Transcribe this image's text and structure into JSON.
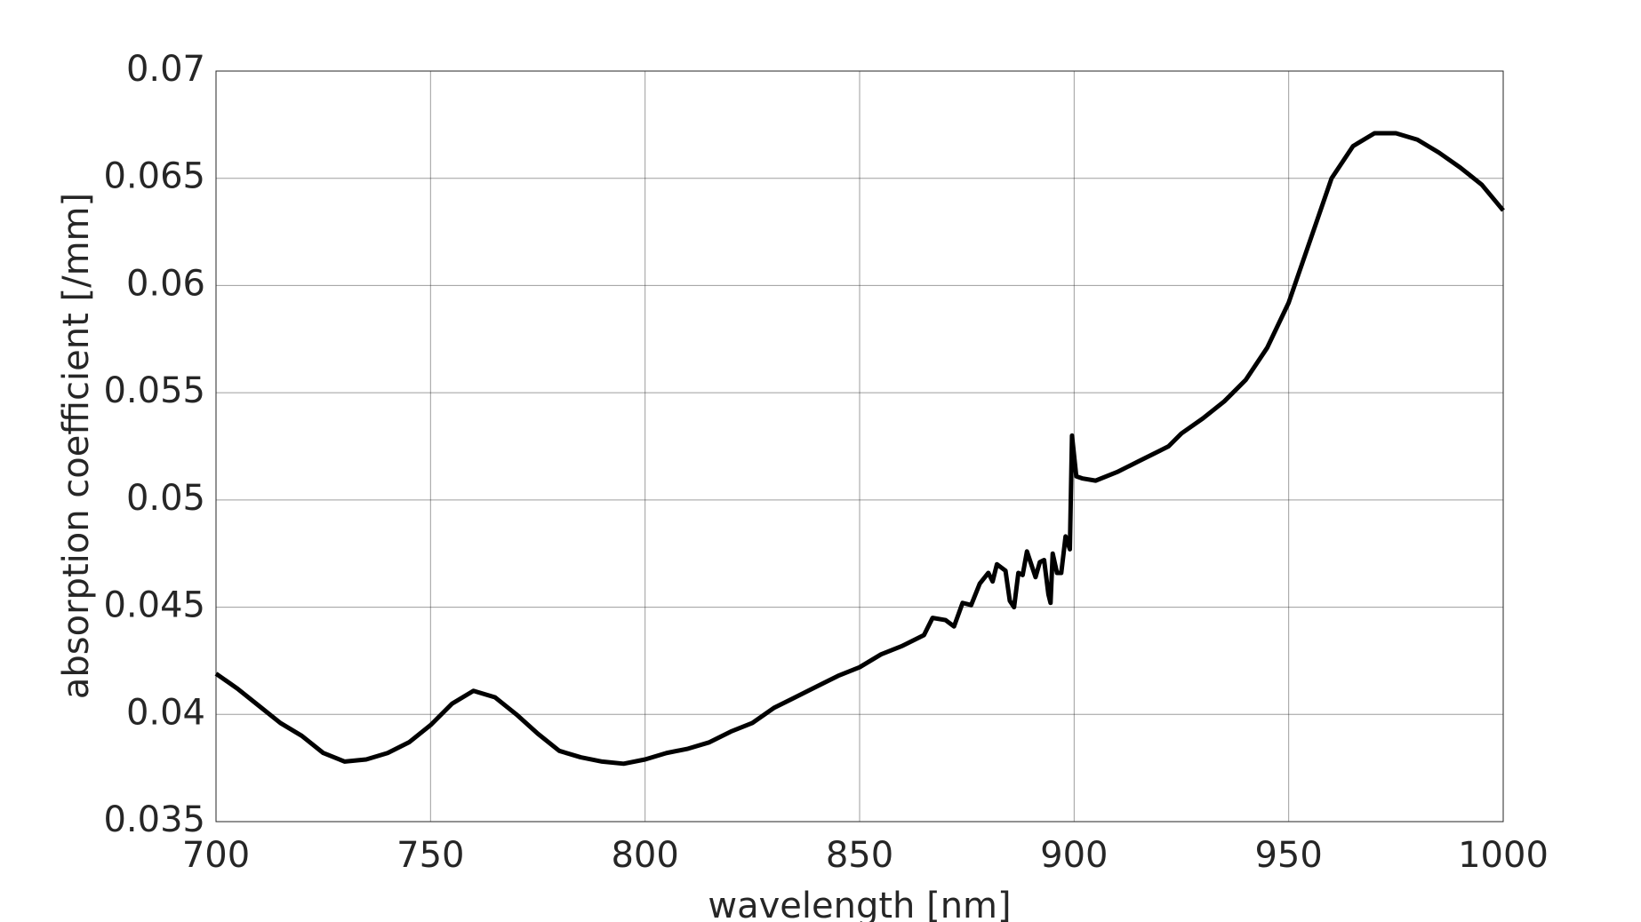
{
  "chart_data": {
    "type": "line",
    "x_label": "wavelength [nm]",
    "y_label": "absorption coefficient [/mm]",
    "x": [
      700,
      705,
      710,
      715,
      720,
      725,
      730,
      735,
      740,
      745,
      750,
      755,
      760,
      765,
      770,
      775,
      780,
      785,
      790,
      795,
      800,
      805,
      810,
      815,
      820,
      825,
      830,
      835,
      840,
      845,
      850,
      855,
      860,
      865,
      867,
      870,
      872,
      874,
      876,
      878,
      880,
      881,
      882,
      884,
      885,
      886,
      887,
      888,
      889,
      890,
      891,
      892,
      893,
      894,
      894.5,
      895,
      896,
      897,
      898,
      899,
      899.5,
      900.5,
      902,
      905,
      910,
      915,
      920,
      922,
      925,
      930,
      935,
      940,
      945,
      950,
      955,
      960,
      965,
      970,
      975,
      980,
      985,
      990,
      995,
      1000
    ],
    "series": [
      {
        "color": "#000000",
        "values": [
          0.0419,
          0.0412,
          0.0404,
          0.0396,
          0.039,
          0.0382,
          0.0378,
          0.0379,
          0.0382,
          0.0387,
          0.0395,
          0.0405,
          0.0411,
          0.0408,
          0.04,
          0.0391,
          0.0383,
          0.038,
          0.0378,
          0.0377,
          0.0379,
          0.0382,
          0.0384,
          0.0387,
          0.0392,
          0.0396,
          0.0403,
          0.0408,
          0.0413,
          0.0418,
          0.0422,
          0.0428,
          0.0432,
          0.0437,
          0.0445,
          0.0444,
          0.0441,
          0.0452,
          0.0451,
          0.0461,
          0.0466,
          0.0462,
          0.047,
          0.0467,
          0.0453,
          0.045,
          0.0466,
          0.0465,
          0.0476,
          0.047,
          0.0464,
          0.0471,
          0.0472,
          0.0456,
          0.0452,
          0.0475,
          0.0466,
          0.0466,
          0.0483,
          0.0477,
          0.053,
          0.0511,
          0.051,
          0.0509,
          0.0513,
          0.0518,
          0.0523,
          0.0525,
          0.0531,
          0.0538,
          0.0546,
          0.0556,
          0.0571,
          0.0592,
          0.0621,
          0.065,
          0.0665,
          0.0671,
          0.0671,
          0.0668,
          0.0662,
          0.0655,
          0.0647,
          0.0635
        ]
      }
    ],
    "xlim": [
      700,
      1000
    ],
    "xticks": [
      700,
      750,
      800,
      850,
      900,
      950,
      1000
    ],
    "ylim": [
      0.035,
      0.07
    ],
    "yticks": [
      0.035,
      0.04,
      0.045,
      0.05,
      0.055,
      0.06,
      0.065,
      0.07
    ],
    "grid": true
  }
}
